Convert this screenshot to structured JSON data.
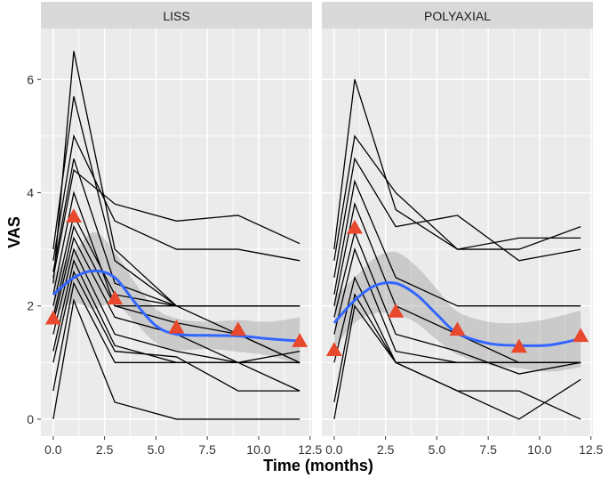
{
  "chart_data": {
    "type": "line",
    "title": "",
    "xlabel": "Time (months)",
    "ylabel": "VAS",
    "xlim": [
      -0.6,
      12.6
    ],
    "ylim": [
      -0.3,
      6.9
    ],
    "x_ticks": [
      0,
      2.5,
      5,
      7.5,
      10,
      12.5
    ],
    "x_tick_labels": [
      "0.0",
      "2.5",
      "5.0",
      "7.5",
      "10.0",
      "12.5"
    ],
    "y_ticks": [
      0,
      2,
      4,
      6
    ],
    "y_tick_labels": [
      "0",
      "2",
      "4",
      "6"
    ],
    "grid": true,
    "colors": {
      "panel_bg": "#ebebeb",
      "strip_bg": "#d9d9d9",
      "grid": "#ffffff",
      "patient_line": "#000000",
      "mean_marker": "#e8482c",
      "smooth_line": "#3366ff",
      "ribbon": "#999999"
    },
    "panels": [
      {
        "label": "LISS",
        "series_individual": [
          [
            [
              0,
              0
            ],
            [
              1,
              2.1
            ],
            [
              3,
              0.3
            ],
            [
              6,
              0
            ],
            [
              9,
              0
            ],
            [
              12,
              0
            ]
          ],
          [
            [
              0,
              0.5
            ],
            [
              1,
              2.4
            ],
            [
              3,
              1.0
            ],
            [
              6,
              1.0
            ],
            [
              9,
              1.0
            ],
            [
              12,
              0.5
            ]
          ],
          [
            [
              0,
              1.0
            ],
            [
              1,
              2.6
            ],
            [
              3,
              1.2
            ],
            [
              6,
              1.1
            ],
            [
              9,
              0.5
            ],
            [
              12,
              0.5
            ]
          ],
          [
            [
              0,
              1.2
            ],
            [
              1,
              2.8
            ],
            [
              3,
              1.3
            ],
            [
              6,
              1.0
            ],
            [
              9,
              1.0
            ],
            [
              12,
              1.0
            ]
          ],
          [
            [
              0,
              1.5
            ],
            [
              1,
              3.0
            ],
            [
              3,
              1.5
            ],
            [
              6,
              1.2
            ],
            [
              9,
              1.0
            ],
            [
              12,
              1.2
            ]
          ],
          [
            [
              0,
              1.7
            ],
            [
              1,
              3.2
            ],
            [
              3,
              1.8
            ],
            [
              6,
              1.5
            ],
            [
              9,
              1.0
            ],
            [
              12,
              1.0
            ]
          ],
          [
            [
              0,
              1.8
            ],
            [
              1,
              3.4
            ],
            [
              3,
              2.0
            ],
            [
              6,
              1.7
            ],
            [
              9,
              1.5
            ],
            [
              12,
              1.0
            ]
          ],
          [
            [
              0,
              2.0
            ],
            [
              1,
              3.6
            ],
            [
              3,
              2.2
            ],
            [
              6,
              2.0
            ],
            [
              9,
              2.0
            ],
            [
              12,
              2.0
            ]
          ],
          [
            [
              0,
              2.2
            ],
            [
              1,
              4.0
            ],
            [
              3,
              2.0
            ],
            [
              6,
              2.0
            ],
            [
              9,
              2.0
            ],
            [
              12,
              2.0
            ]
          ],
          [
            [
              0,
              2.5
            ],
            [
              1,
              4.4
            ],
            [
              3,
              3.8
            ],
            [
              6,
              3.5
            ],
            [
              9,
              3.6
            ],
            [
              12,
              3.1
            ]
          ],
          [
            [
              0,
              2.6
            ],
            [
              1,
              4.6
            ],
            [
              3,
              2.4
            ],
            [
              6,
              2.0
            ],
            [
              9,
              2.0
            ],
            [
              12,
              2.0
            ]
          ],
          [
            [
              0,
              2.8
            ],
            [
              1,
              5.0
            ],
            [
              3,
              3.5
            ],
            [
              6,
              3.0
            ],
            [
              9,
              3.0
            ],
            [
              12,
              2.8
            ]
          ],
          [
            [
              0,
              3.0
            ],
            [
              1,
              5.7
            ],
            [
              3,
              2.8
            ],
            [
              6,
              2.0
            ],
            [
              9,
              1.5
            ],
            [
              12,
              1.0
            ]
          ],
          [
            [
              0,
              2.4
            ],
            [
              1,
              6.5
            ],
            [
              3,
              3.0
            ],
            [
              6,
              2.0
            ],
            [
              9,
              2.0
            ],
            [
              12,
              2.0
            ]
          ]
        ],
        "mean_points": [
          [
            0,
            1.78
          ],
          [
            1,
            3.58
          ],
          [
            3,
            2.13
          ],
          [
            6,
            1.62
          ],
          [
            9,
            1.58
          ],
          [
            12,
            1.38
          ]
        ],
        "smooth_line": [
          [
            0,
            2.2
          ],
          [
            1,
            2.5
          ],
          [
            2,
            2.62
          ],
          [
            3,
            2.5
          ],
          [
            4,
            2.05
          ],
          [
            5,
            1.65
          ],
          [
            6,
            1.5
          ],
          [
            7.5,
            1.48
          ],
          [
            9,
            1.47
          ],
          [
            10.5,
            1.42
          ],
          [
            12,
            1.38
          ]
        ],
        "ribbon_upper": [
          [
            0,
            2.55
          ],
          [
            1,
            2.95
          ],
          [
            2,
            3.3
          ],
          [
            3,
            2.95
          ],
          [
            4,
            2.4
          ],
          [
            5,
            1.95
          ],
          [
            6,
            1.78
          ],
          [
            7.5,
            1.72
          ],
          [
            9,
            1.75
          ],
          [
            10.5,
            1.72
          ],
          [
            12,
            1.8
          ]
        ],
        "ribbon_lower": [
          [
            0,
            1.85
          ],
          [
            1,
            2.05
          ],
          [
            2,
            1.95
          ],
          [
            3,
            2.05
          ],
          [
            4,
            1.7
          ],
          [
            5,
            1.35
          ],
          [
            6,
            1.22
          ],
          [
            7.5,
            1.24
          ],
          [
            9,
            1.19
          ],
          [
            10.5,
            1.12
          ],
          [
            12,
            0.96
          ]
        ]
      },
      {
        "label": "POLYAXIAL",
        "series_individual": [
          [
            [
              0,
              0
            ],
            [
              1,
              2.0
            ],
            [
              3,
              1.0
            ],
            [
              6,
              0.5
            ],
            [
              9,
              0
            ],
            [
              12,
              0.7
            ]
          ],
          [
            [
              0,
              0.3
            ],
            [
              1,
              2.2
            ],
            [
              3,
              1.0
            ],
            [
              6,
              0.5
            ],
            [
              9,
              0.5
            ],
            [
              12,
              0
            ]
          ],
          [
            [
              0,
              1.0
            ],
            [
              1,
              2.5
            ],
            [
              3,
              1.0
            ],
            [
              6,
              1.0
            ],
            [
              9,
              1.0
            ],
            [
              12,
              1.0
            ]
          ],
          [
            [
              0,
              1.5
            ],
            [
              1,
              3.0
            ],
            [
              3,
              1.2
            ],
            [
              6,
              1.0
            ],
            [
              9,
              1.0
            ],
            [
              12,
              1.0
            ]
          ],
          [
            [
              0,
              1.8
            ],
            [
              1,
              3.3
            ],
            [
              3,
              1.5
            ],
            [
              6,
              1.2
            ],
            [
              9,
              0.8
            ],
            [
              12,
              1.0
            ]
          ],
          [
            [
              0,
              2.0
            ],
            [
              1,
              3.8
            ],
            [
              3,
              2.0
            ],
            [
              6,
              1.5
            ],
            [
              9,
              1.0
            ],
            [
              12,
              1.0
            ]
          ],
          [
            [
              0,
              2.2
            ],
            [
              1,
              4.2
            ],
            [
              3,
              2.5
            ],
            [
              6,
              2.0
            ],
            [
              9,
              2.0
            ],
            [
              12,
              2.0
            ]
          ],
          [
            [
              0,
              2.5
            ],
            [
              1,
              4.6
            ],
            [
              3,
              3.4
            ],
            [
              6,
              3.6
            ],
            [
              9,
              2.8
            ],
            [
              12,
              3.0
            ]
          ],
          [
            [
              0,
              2.8
            ],
            [
              1,
              5.0
            ],
            [
              3,
              4.0
            ],
            [
              6,
              3.0
            ],
            [
              9,
              3.0
            ],
            [
              12,
              3.4
            ]
          ],
          [
            [
              0,
              3.0
            ],
            [
              1,
              6.0
            ],
            [
              3,
              3.7
            ],
            [
              6,
              3.0
            ],
            [
              9,
              3.2
            ],
            [
              12,
              3.2
            ]
          ]
        ],
        "mean_points": [
          [
            0,
            1.22
          ],
          [
            1,
            3.38
          ],
          [
            3,
            1.9
          ],
          [
            6,
            1.58
          ],
          [
            9,
            1.28
          ],
          [
            12,
            1.47
          ]
        ],
        "smooth_line": [
          [
            0,
            1.7
          ],
          [
            1,
            2.1
          ],
          [
            2,
            2.36
          ],
          [
            3,
            2.4
          ],
          [
            4,
            2.2
          ],
          [
            5,
            1.85
          ],
          [
            6,
            1.52
          ],
          [
            7.5,
            1.34
          ],
          [
            9,
            1.3
          ],
          [
            10.5,
            1.31
          ],
          [
            12,
            1.42
          ]
        ],
        "ribbon_upper": [
          [
            0,
            2.15
          ],
          [
            1,
            2.5
          ],
          [
            2,
            2.85
          ],
          [
            3,
            2.95
          ],
          [
            4,
            2.7
          ],
          [
            5,
            2.3
          ],
          [
            6,
            1.9
          ],
          [
            7.5,
            1.72
          ],
          [
            9,
            1.7
          ],
          [
            10.5,
            1.78
          ],
          [
            12,
            1.92
          ]
        ],
        "ribbon_lower": [
          [
            0,
            1.25
          ],
          [
            1,
            1.7
          ],
          [
            2,
            1.87
          ],
          [
            3,
            1.85
          ],
          [
            4,
            1.7
          ],
          [
            5,
            1.4
          ],
          [
            6,
            1.14
          ],
          [
            7.5,
            0.96
          ],
          [
            9,
            0.9
          ],
          [
            10.5,
            0.84
          ],
          [
            12,
            0.92
          ]
        ]
      }
    ]
  }
}
